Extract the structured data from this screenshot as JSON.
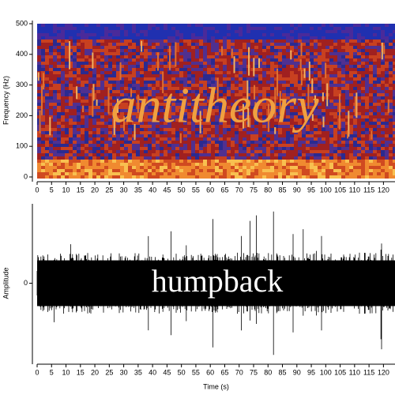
{
  "chart_data": [
    {
      "type": "spectrogram",
      "ylabel": "Frequency (Hz)",
      "annotation": "antitheory",
      "xlim": [
        0,
        124
      ],
      "xticks": [
        0,
        5,
        10,
        15,
        20,
        25,
        30,
        35,
        40,
        45,
        50,
        55,
        60,
        65,
        70,
        75,
        80,
        85,
        90,
        95,
        100,
        105,
        110,
        115,
        120
      ],
      "ylim": [
        0,
        500
      ],
      "yticks": [
        0,
        100,
        200,
        300,
        400,
        500
      ]
    },
    {
      "type": "waveform",
      "ylabel": "Amplitude",
      "xlabel": "Time (s)",
      "annotation": "humpback",
      "xlim": [
        0,
        124
      ],
      "xticks": [
        0,
        5,
        10,
        15,
        20,
        25,
        30,
        35,
        40,
        45,
        50,
        55,
        60,
        65,
        70,
        75,
        80,
        85,
        90,
        95,
        100,
        105,
        110,
        115,
        120
      ],
      "ylim": [
        -1,
        1
      ],
      "yticks": [
        0
      ]
    }
  ]
}
